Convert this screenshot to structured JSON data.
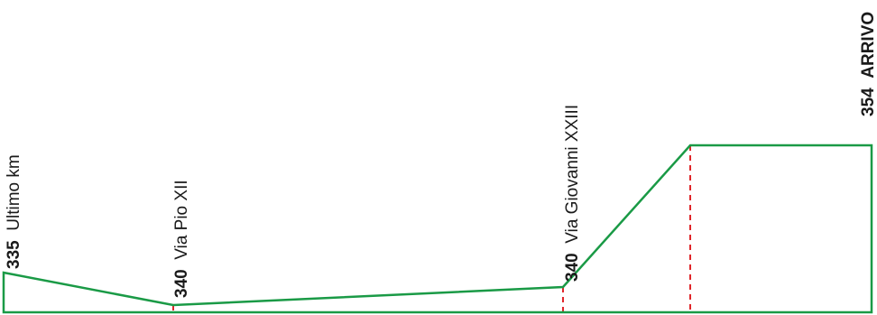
{
  "profile": {
    "line_color": "#1a9a46",
    "marker_color": "#e0262a",
    "text_color": "#1a1a1a",
    "waypoints": [
      {
        "altitude": "335",
        "name": "Ultimo km"
      },
      {
        "altitude": "340",
        "name": "Via Pio XII"
      },
      {
        "altitude": "340",
        "name": "Via Giovanni XXIII"
      },
      {
        "altitude": "354",
        "name": "ARRIVO"
      }
    ]
  }
}
